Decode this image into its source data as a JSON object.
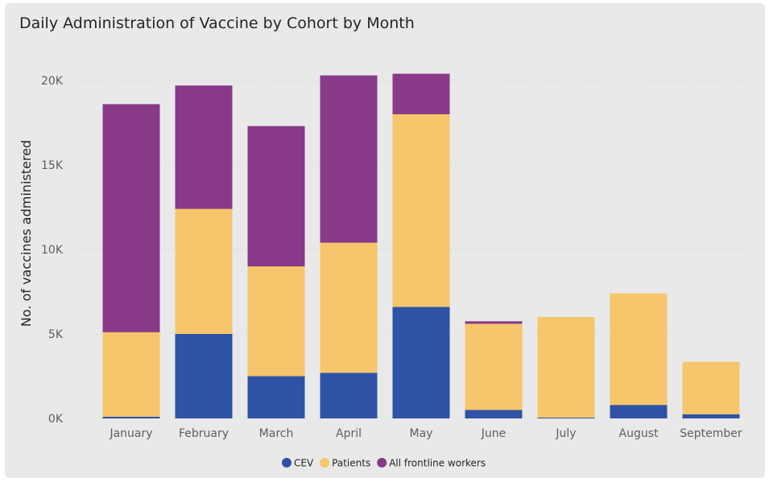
{
  "title": "Daily Administration of Vaccine by Cohort by Month",
  "chart_data": {
    "type": "bar",
    "stacked": true,
    "title": "Daily Administration of Vaccine by Cohort by Month",
    "xlabel": "",
    "ylabel": "No. of vaccines administered",
    "ylim": [
      0,
      20000
    ],
    "yticks": [
      0,
      5000,
      10000,
      15000,
      20000
    ],
    "ytick_labels": [
      "0K",
      "5K",
      "10K",
      "15K",
      "20K"
    ],
    "grid": true,
    "legend_position": "bottom-center",
    "categories": [
      "January",
      "February",
      "March",
      "April",
      "May",
      "June",
      "July",
      "August",
      "September"
    ],
    "series": [
      {
        "name": "CEV",
        "color": "#2f52a6",
        "values": [
          100,
          5000,
          2500,
          2700,
          6600,
          500,
          50,
          800,
          250
        ]
      },
      {
        "name": "Patients",
        "color": "#f5c66b",
        "values": [
          5000,
          7400,
          6500,
          7700,
          11400,
          5100,
          5950,
          6600,
          3100
        ]
      },
      {
        "name": "All frontline workers",
        "color": "#883a89",
        "values": [
          13500,
          7300,
          8300,
          9900,
          2400,
          150,
          0,
          0,
          0
        ]
      }
    ]
  }
}
